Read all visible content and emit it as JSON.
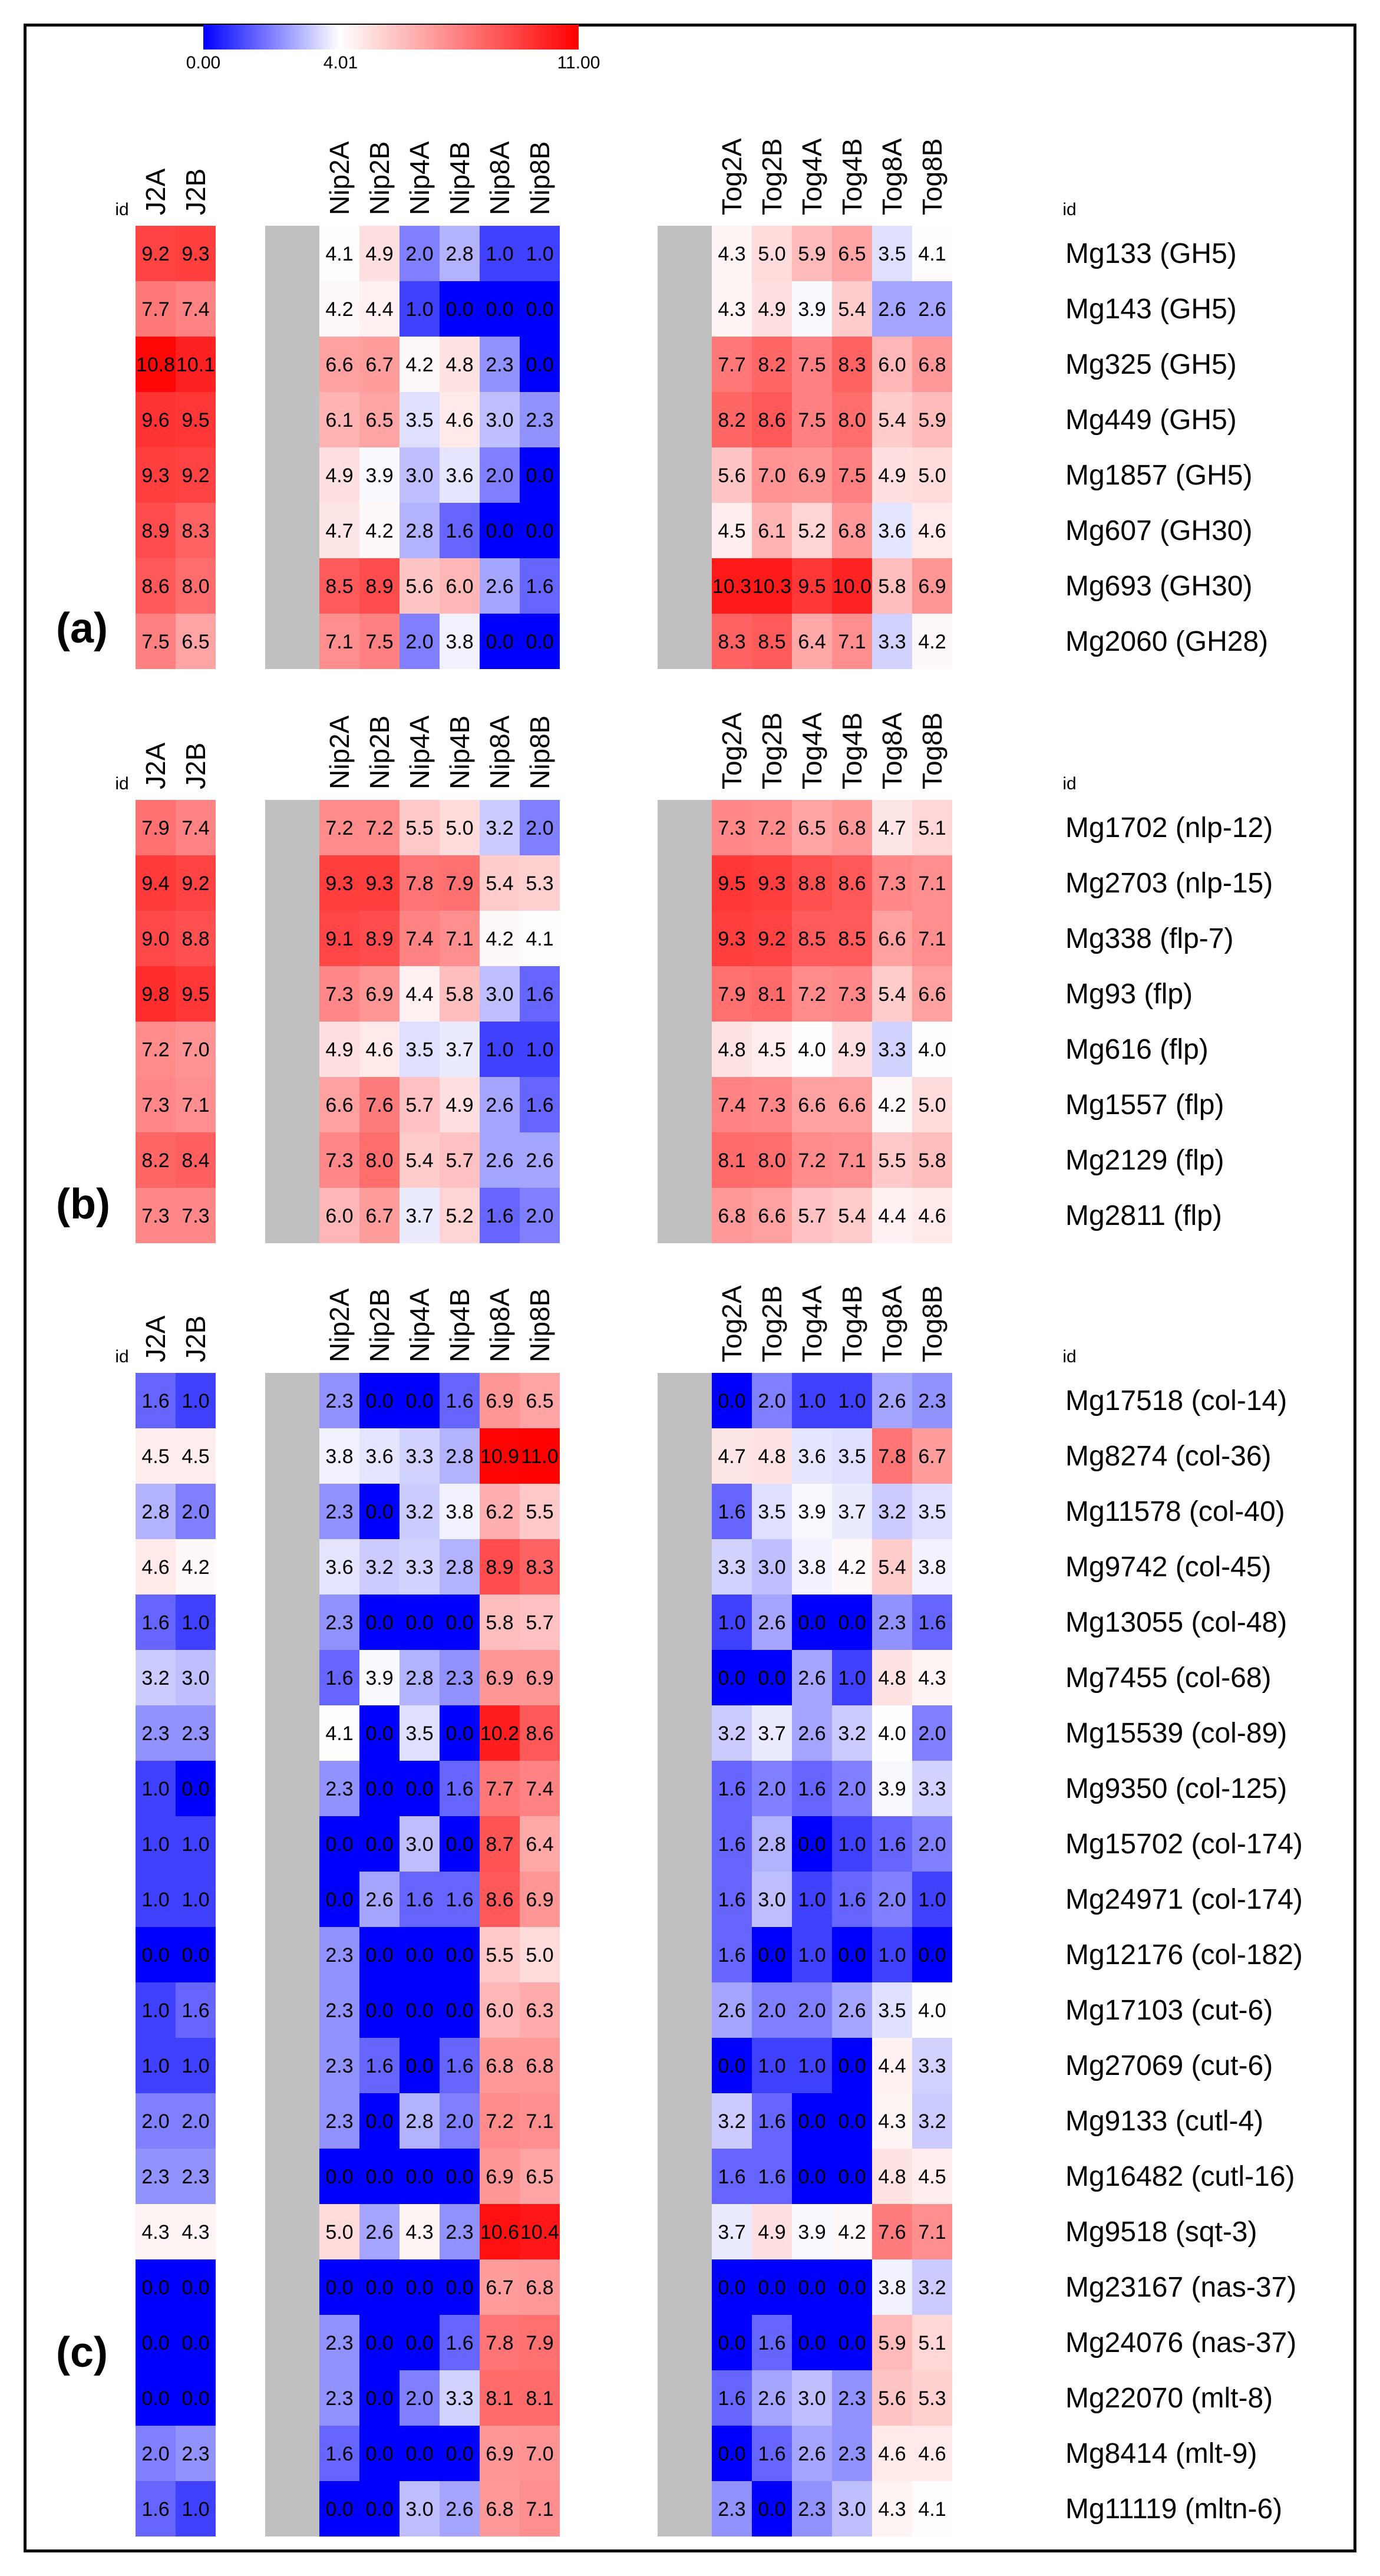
{
  "colors": {
    "low": "#0000ff",
    "mid": "#ffffff",
    "high": "#ff0000",
    "spacer": "#c0c0c0"
  },
  "chart_data": {
    "type": "heatmap",
    "legend": {
      "min": "0.00",
      "mid": "4.01",
      "max": "11.00",
      "min_value": 0,
      "mid_value": 4.01,
      "max_value": 11
    },
    "id_label": "id",
    "column_groups": [
      [
        "J2A",
        "J2B"
      ],
      [
        "Nip2A",
        "Nip2B",
        "Nip4A",
        "Nip4B",
        "Nip8A",
        "Nip8B"
      ],
      [
        "Tog2A",
        "Tog2B",
        "Tog4A",
        "Tog4B",
        "Tog8A",
        "Tog8B"
      ]
    ],
    "panels": [
      {
        "label": "(a)",
        "rows": [
          "Mg133 (GH5)",
          "Mg143 (GH5)",
          "Mg325 (GH5)",
          "Mg449 (GH5)",
          "Mg1857 (GH5)",
          "Mg607 (GH30)",
          "Mg693 (GH30)",
          "Mg2060 (GH28)"
        ],
        "values": [
          [
            9.2,
            9.3,
            4.1,
            4.9,
            2.0,
            2.8,
            1.0,
            1.0,
            4.3,
            5.0,
            5.9,
            6.5,
            3.5,
            4.1
          ],
          [
            7.7,
            7.4,
            4.2,
            4.4,
            1.0,
            0.0,
            0.0,
            0.0,
            4.3,
            4.9,
            3.9,
            5.4,
            2.6,
            2.6
          ],
          [
            10.8,
            10.1,
            6.6,
            6.7,
            4.2,
            4.8,
            2.3,
            0.0,
            7.7,
            8.2,
            7.5,
            8.3,
            6.0,
            6.8
          ],
          [
            9.6,
            9.5,
            6.1,
            6.5,
            3.5,
            4.6,
            3.0,
            2.3,
            8.2,
            8.6,
            7.5,
            8.0,
            5.4,
            5.9
          ],
          [
            9.3,
            9.2,
            4.9,
            3.9,
            3.0,
            3.6,
            2.0,
            0.0,
            5.6,
            7.0,
            6.9,
            7.5,
            4.9,
            5.0
          ],
          [
            8.9,
            8.3,
            4.7,
            4.2,
            2.8,
            1.6,
            0.0,
            0.0,
            4.5,
            6.1,
            5.2,
            6.8,
            3.6,
            4.6
          ],
          [
            8.6,
            8.0,
            8.5,
            8.9,
            5.6,
            6.0,
            2.6,
            1.6,
            10.3,
            10.3,
            9.5,
            10.0,
            5.8,
            6.9
          ],
          [
            7.5,
            6.5,
            7.1,
            7.5,
            2.0,
            3.8,
            0.0,
            0.0,
            8.3,
            8.5,
            6.4,
            7.1,
            3.3,
            4.2
          ]
        ]
      },
      {
        "label": "(b)",
        "rows": [
          "Mg1702 (nlp-12)",
          "Mg2703 (nlp-15)",
          "Mg338 (flp-7)",
          "Mg93 (flp)",
          "Mg616 (flp)",
          "Mg1557 (flp)",
          "Mg2129 (flp)",
          "Mg2811 (flp)"
        ],
        "values": [
          [
            7.9,
            7.4,
            7.2,
            7.2,
            5.5,
            5.0,
            3.2,
            2.0,
            7.3,
            7.2,
            6.5,
            6.8,
            4.7,
            5.1
          ],
          [
            9.4,
            9.2,
            9.3,
            9.3,
            7.8,
            7.9,
            5.4,
            5.3,
            9.5,
            9.3,
            8.8,
            8.6,
            7.3,
            7.1
          ],
          [
            9.0,
            8.8,
            9.1,
            8.9,
            7.4,
            7.1,
            4.2,
            4.1,
            9.3,
            9.2,
            8.5,
            8.5,
            6.6,
            7.1
          ],
          [
            9.8,
            9.5,
            7.3,
            6.9,
            4.4,
            5.8,
            3.0,
            1.6,
            7.9,
            8.1,
            7.2,
            7.3,
            5.4,
            6.6
          ],
          [
            7.2,
            7.0,
            4.9,
            4.6,
            3.5,
            3.7,
            1.0,
            1.0,
            4.8,
            4.5,
            4.0,
            4.9,
            3.3,
            4.0
          ],
          [
            7.3,
            7.1,
            6.6,
            7.6,
            5.7,
            4.9,
            2.6,
            1.6,
            7.4,
            7.3,
            6.6,
            6.6,
            4.2,
            5.0
          ],
          [
            8.2,
            8.4,
            7.3,
            8.0,
            5.4,
            5.7,
            2.6,
            2.6,
            8.1,
            8.0,
            7.2,
            7.1,
            5.5,
            5.8
          ],
          [
            7.3,
            7.3,
            6.0,
            6.7,
            3.7,
            5.2,
            1.6,
            2.0,
            6.8,
            6.6,
            5.7,
            5.4,
            4.4,
            4.6
          ]
        ]
      },
      {
        "label": "(c)",
        "rows": [
          "Mg17518 (col-14)",
          "Mg8274 (col-36)",
          "Mg11578 (col-40)",
          "Mg9742 (col-45)",
          "Mg13055 (col-48)",
          "Mg7455 (col-68)",
          "Mg15539 (col-89)",
          "Mg9350 (col-125)",
          "Mg15702 (col-174)",
          "Mg24971 (col-174)",
          "Mg12176 (col-182)",
          "Mg17103 (cut-6)",
          "Mg27069 (cut-6)",
          "Mg9133 (cutl-4)",
          "Mg16482 (cutl-16)",
          "Mg9518 (sqt-3)",
          "Mg23167 (nas-37)",
          "Mg24076 (nas-37)",
          "Mg22070 (mlt-8)",
          "Mg8414 (mlt-9)",
          "Mg11119 (mltn-6)"
        ],
        "values": [
          [
            1.6,
            1.0,
            2.3,
            0.0,
            0.0,
            1.6,
            6.9,
            6.5,
            0.0,
            2.0,
            1.0,
            1.0,
            2.6,
            2.3
          ],
          [
            4.5,
            4.5,
            3.8,
            3.6,
            3.3,
            2.8,
            10.9,
            11.0,
            4.7,
            4.8,
            3.6,
            3.5,
            7.8,
            6.7
          ],
          [
            2.8,
            2.0,
            2.3,
            0.0,
            3.2,
            3.8,
            6.2,
            5.5,
            1.6,
            3.5,
            3.9,
            3.7,
            3.2,
            3.5
          ],
          [
            4.6,
            4.2,
            3.6,
            3.2,
            3.3,
            2.8,
            8.9,
            8.3,
            3.3,
            3.0,
            3.8,
            4.2,
            5.4,
            3.8
          ],
          [
            1.6,
            1.0,
            2.3,
            0.0,
            0.0,
            0.0,
            5.8,
            5.7,
            1.0,
            2.6,
            0.0,
            0.0,
            2.3,
            1.6
          ],
          [
            3.2,
            3.0,
            1.6,
            3.9,
            2.8,
            2.3,
            6.9,
            6.9,
            0.0,
            0.0,
            2.6,
            1.0,
            4.8,
            4.3
          ],
          [
            2.3,
            2.3,
            4.1,
            0.0,
            3.5,
            0.0,
            10.2,
            8.6,
            3.2,
            3.7,
            2.6,
            3.2,
            4.0,
            2.0
          ],
          [
            1.0,
            0.0,
            2.3,
            0.0,
            0.0,
            1.6,
            7.7,
            7.4,
            1.6,
            2.0,
            1.6,
            2.0,
            3.9,
            3.3
          ],
          [
            1.0,
            1.0,
            0.0,
            0.0,
            3.0,
            0.0,
            8.7,
            6.4,
            1.6,
            2.8,
            0.0,
            1.0,
            1.6,
            2.0
          ],
          [
            1.0,
            1.0,
            0.0,
            2.6,
            1.6,
            1.6,
            8.6,
            6.9,
            1.6,
            3.0,
            1.0,
            1.6,
            2.0,
            1.0
          ],
          [
            0.0,
            0.0,
            2.3,
            0.0,
            0.0,
            0.0,
            5.5,
            5.0,
            1.6,
            0.0,
            1.0,
            0.0,
            1.0,
            0.0
          ],
          [
            1.0,
            1.6,
            2.3,
            0.0,
            0.0,
            0.0,
            6.0,
            6.3,
            2.6,
            2.0,
            2.0,
            2.6,
            3.5,
            4.0
          ],
          [
            1.0,
            1.0,
            2.3,
            1.6,
            0.0,
            1.6,
            6.8,
            6.8,
            0.0,
            1.0,
            1.0,
            0.0,
            4.4,
            3.3
          ],
          [
            2.0,
            2.0,
            2.3,
            0.0,
            2.8,
            2.0,
            7.2,
            7.1,
            3.2,
            1.6,
            0.0,
            0.0,
            4.3,
            3.2
          ],
          [
            2.3,
            2.3,
            0.0,
            0.0,
            0.0,
            0.0,
            6.9,
            6.5,
            1.6,
            1.6,
            0.0,
            0.0,
            4.8,
            4.5
          ],
          [
            4.3,
            4.3,
            5.0,
            2.6,
            4.3,
            2.3,
            10.6,
            10.4,
            3.7,
            4.9,
            3.9,
            4.2,
            7.6,
            7.1
          ],
          [
            0.0,
            0.0,
            0.0,
            0.0,
            0.0,
            0.0,
            6.7,
            6.8,
            0.0,
            0.0,
            0.0,
            0.0,
            3.8,
            3.2
          ],
          [
            0.0,
            0.0,
            2.3,
            0.0,
            0.0,
            1.6,
            7.8,
            7.9,
            0.0,
            1.6,
            0.0,
            0.0,
            5.9,
            5.1
          ],
          [
            0.0,
            0.0,
            2.3,
            0.0,
            2.0,
            3.3,
            8.1,
            8.1,
            1.6,
            2.6,
            3.0,
            2.3,
            5.6,
            5.3
          ],
          [
            2.0,
            2.3,
            1.6,
            0.0,
            0.0,
            0.0,
            6.9,
            7.0,
            0.0,
            1.6,
            2.6,
            2.3,
            4.6,
            4.6
          ],
          [
            1.6,
            1.0,
            0.0,
            0.0,
            3.0,
            2.6,
            6.8,
            7.1,
            2.3,
            0.0,
            2.3,
            3.0,
            4.3,
            4.1
          ]
        ]
      }
    ]
  }
}
